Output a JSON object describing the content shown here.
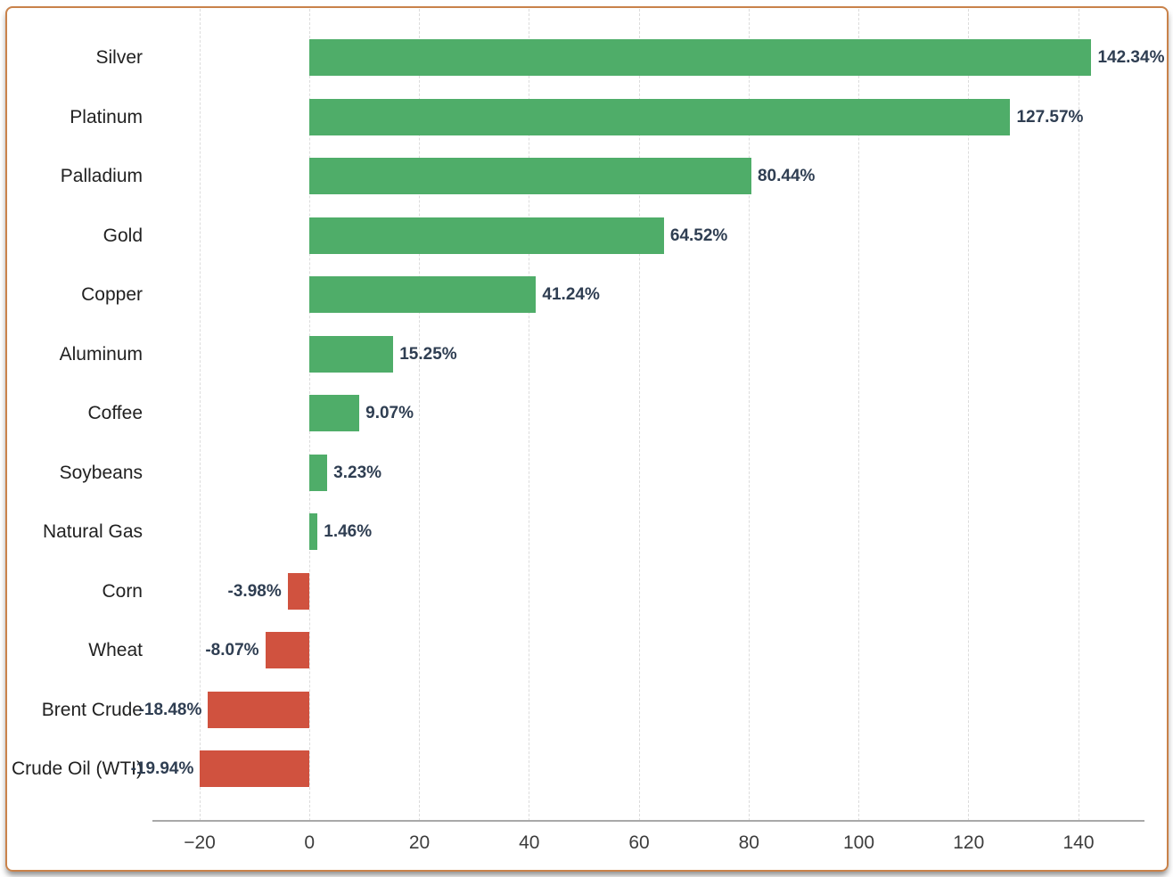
{
  "chart_data": {
    "type": "bar",
    "orientation": "horizontal",
    "title": "",
    "xlabel": "",
    "ylabel": "",
    "legend": "none",
    "grid": "vertical dashed gridlines at every x tick",
    "xlim": [
      -28.6,
      152.0
    ],
    "x_ticks": [
      {
        "value": -20,
        "label": "−20"
      },
      {
        "value": 0,
        "label": "0"
      },
      {
        "value": 20,
        "label": "20"
      },
      {
        "value": 40,
        "label": "40"
      },
      {
        "value": 60,
        "label": "60"
      },
      {
        "value": 80,
        "label": "80"
      },
      {
        "value": 100,
        "label": "100"
      },
      {
        "value": 120,
        "label": "120"
      },
      {
        "value": 140,
        "label": "140"
      }
    ],
    "categories": [
      "Silver",
      "Platinum",
      "Palladium",
      "Gold",
      "Copper",
      "Aluminum",
      "Coffee",
      "Soybeans",
      "Natural Gas",
      "Corn",
      "Wheat",
      "Brent Crude",
      "Crude Oil (WTI)"
    ],
    "values": [
      142.34,
      127.57,
      80.44,
      64.52,
      41.24,
      15.25,
      9.07,
      3.23,
      1.46,
      -3.98,
      -8.07,
      -18.48,
      -19.94
    ],
    "value_labels": [
      "142.34%",
      "127.57%",
      "80.44%",
      "64.52%",
      "41.24%",
      "15.25%",
      "9.07%",
      "3.23%",
      "1.46%",
      "-3.98%",
      "-8.07%",
      "-18.48%",
      "-19.94%"
    ],
    "colors": {
      "positive_bar": "#4fad69",
      "negative_bar": "#d0523f",
      "value_label": "#2f3e52",
      "category_label": "#212121",
      "tick_label": "#3d3d3d",
      "axis_line": "#a9a9a9",
      "gridline": "#dcdcdc",
      "card_border": "#c9824a",
      "background": "#ffffff"
    }
  }
}
